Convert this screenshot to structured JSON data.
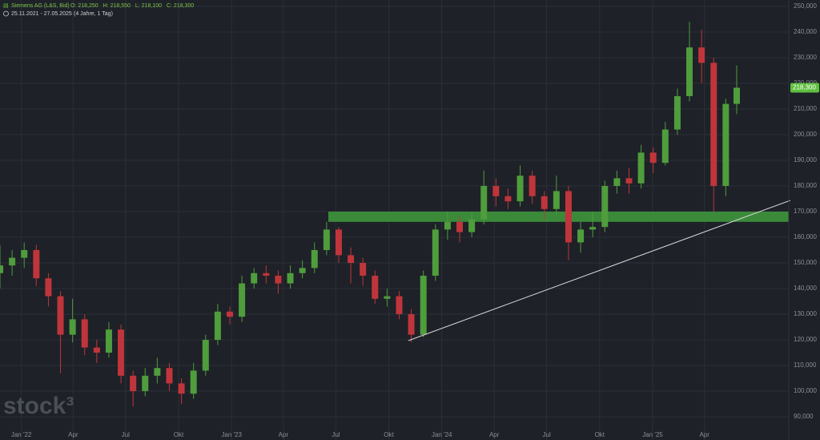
{
  "chart_data": {
    "type": "candlestick",
    "title": "Siemens AG (L&S, Bid)",
    "last_ohlc": [
      {
        "value": 218250,
        "label": "O: 218,250"
      },
      {
        "value": 218550,
        "label": "H: 218,550"
      },
      {
        "value": 218100,
        "label": "L: 218,100"
      },
      {
        "value": 218300,
        "label": "C: 218,300"
      }
    ],
    "subtitle": "25.11.2021 - 27.05.2025",
    "range_note": "(4 Jahre, 1 Tag)",
    "watermark": "stock³",
    "last_price": {
      "value": 218300,
      "label": "218,300"
    },
    "x": [
      "2021-11-25",
      "2021-12-16",
      "2022-01-06",
      "2022-01-27",
      "2022-02-17",
      "2022-03-10",
      "2022-03-31",
      "2022-04-21",
      "2022-05-12",
      "2022-06-02",
      "2022-06-23",
      "2022-07-14",
      "2022-08-04",
      "2022-08-25",
      "2022-09-15",
      "2022-10-06",
      "2022-10-27",
      "2022-11-17",
      "2022-12-08",
      "2022-12-29",
      "2023-01-19",
      "2023-02-09",
      "2023-03-02",
      "2023-03-23",
      "2023-04-13",
      "2023-05-04",
      "2023-05-25",
      "2023-06-15",
      "2023-07-06",
      "2023-07-27",
      "2023-08-17",
      "2023-09-07",
      "2023-09-28",
      "2023-10-19",
      "2023-11-09",
      "2023-11-30",
      "2023-12-21",
      "2024-01-11",
      "2024-02-01",
      "2024-02-22",
      "2024-03-14",
      "2024-04-04",
      "2024-04-25",
      "2024-05-16",
      "2024-06-06",
      "2024-06-27",
      "2024-07-18",
      "2024-08-08",
      "2024-08-29",
      "2024-09-19",
      "2024-10-10",
      "2024-10-31",
      "2024-11-21",
      "2024-12-12",
      "2025-01-02",
      "2025-01-23",
      "2025-02-13",
      "2025-03-06",
      "2025-03-27",
      "2025-04-17",
      "2025-05-08",
      "2025-05-27"
    ],
    "open": [
      146000,
      149000,
      152000,
      155000,
      144000,
      137000,
      122000,
      128000,
      117000,
      115000,
      124000,
      106000,
      100000,
      106000,
      109000,
      103000,
      99000,
      108000,
      120000,
      131000,
      129000,
      142000,
      146000,
      145000,
      142000,
      146000,
      148000,
      155000,
      163000,
      153000,
      150000,
      145000,
      136000,
      137000,
      130000,
      122000,
      145000,
      163000,
      166000,
      162000,
      167000,
      180000,
      176000,
      174000,
      184000,
      176000,
      171000,
      178000,
      158000,
      163000,
      164000,
      180000,
      183000,
      181000,
      193000,
      189000,
      202000,
      215000,
      234000,
      228000,
      180000,
      212000
    ],
    "high": [
      157000,
      155000,
      158000,
      157000,
      146000,
      139000,
      136000,
      130000,
      120000,
      127000,
      126000,
      108000,
      109000,
      113000,
      111000,
      105000,
      111000,
      122000,
      134000,
      133000,
      145000,
      148000,
      149000,
      147000,
      149000,
      151000,
      158000,
      166000,
      164000,
      156000,
      152000,
      147000,
      140000,
      139000,
      132000,
      147000,
      165000,
      170000,
      168000,
      170000,
      186000,
      183000,
      179000,
      188000,
      186000,
      178000,
      184000,
      180000,
      166000,
      170000,
      182000,
      186000,
      187000,
      196000,
      195000,
      205000,
      218000,
      244000,
      241000,
      230000,
      214000,
      227000
    ],
    "low": [
      140000,
      145000,
      148000,
      141000,
      133000,
      107000,
      119000,
      114000,
      111000,
      113000,
      103000,
      94000,
      98000,
      103000,
      100000,
      95000,
      97000,
      106000,
      118000,
      126000,
      127000,
      140000,
      142000,
      138000,
      140000,
      144000,
      146000,
      153000,
      150000,
      142000,
      141000,
      134000,
      133000,
      128000,
      119000,
      121000,
      143000,
      159000,
      158000,
      160000,
      165000,
      172000,
      171000,
      172000,
      173000,
      167000,
      169000,
      151000,
      154000,
      160000,
      162000,
      177000,
      177000,
      179000,
      185000,
      188000,
      200000,
      213000,
      220000,
      170000,
      176000,
      208000
    ],
    "close": [
      149000,
      152000,
      155000,
      144000,
      137000,
      122000,
      128000,
      117000,
      115000,
      124000,
      106000,
      100000,
      106000,
      109000,
      103000,
      99000,
      108000,
      120000,
      131000,
      129000,
      142000,
      146000,
      145000,
      142000,
      146000,
      148000,
      155000,
      163000,
      153000,
      150000,
      145000,
      136000,
      137000,
      130000,
      122000,
      145000,
      163000,
      166000,
      162000,
      167000,
      180000,
      176000,
      174000,
      184000,
      176000,
      171000,
      178000,
      158000,
      163000,
      164000,
      180000,
      183000,
      181000,
      193000,
      189000,
      202000,
      215000,
      234000,
      228000,
      180000,
      212000,
      218300
    ],
    "up_color": "#4f9d3c",
    "down_color": "#c0353b",
    "zone": [
      166000,
      170000
    ],
    "zone_color": "#3b8a3a",
    "xlim": [
      "2021-11-25",
      "2025-05-27"
    ],
    "xticks": [
      {
        "value": "2022-01-01",
        "label": "Jan '22"
      },
      {
        "value": "2022-04-01",
        "label": "Apr"
      },
      {
        "value": "2022-07-01",
        "label": "Jul"
      },
      {
        "value": "2022-10-01",
        "label": "Okt"
      },
      {
        "value": "2023-01-01",
        "label": "Jan '23"
      },
      {
        "value": "2023-04-01",
        "label": "Apr"
      },
      {
        "value": "2023-07-01",
        "label": "Jul"
      },
      {
        "value": "2023-10-01",
        "label": "Okt"
      },
      {
        "value": "2024-01-01",
        "label": "Jan '24"
      },
      {
        "value": "2024-04-01",
        "label": "Apr"
      },
      {
        "value": "2024-07-01",
        "label": "Jul"
      },
      {
        "value": "2024-10-01",
        "label": "Okt"
      },
      {
        "value": "2025-01-01",
        "label": "Jan '25"
      },
      {
        "value": "2025-04-01",
        "label": "Apr"
      }
    ],
    "ylim": [
      80940,
      252500
    ],
    "yticks": [
      {
        "value": 90000,
        "label": "90,000"
      },
      {
        "value": 100000,
        "label": "100,000"
      },
      {
        "value": 110000,
        "label": "110,000"
      },
      {
        "value": 120000,
        "label": "120,000"
      },
      {
        "value": 130000,
        "label": "130,000"
      },
      {
        "value": 140000,
        "label": "140,000"
      },
      {
        "value": 150000,
        "label": "150,000"
      },
      {
        "value": 160000,
        "label": "160,000"
      },
      {
        "value": 170000,
        "label": "170,000"
      },
      {
        "value": 180000,
        "label": "180,000"
      },
      {
        "value": 190000,
        "label": "190,000"
      },
      {
        "value": 200000,
        "label": "200,000"
      },
      {
        "value": 210000,
        "label": "210,000"
      },
      {
        "value": 220000,
        "label": "220,000"
      },
      {
        "value": 230000,
        "label": "230,000"
      },
      {
        "value": 240000,
        "label": "240,000"
      },
      {
        "value": 250000,
        "label": "250,000"
      }
    ],
    "grid": true
  }
}
